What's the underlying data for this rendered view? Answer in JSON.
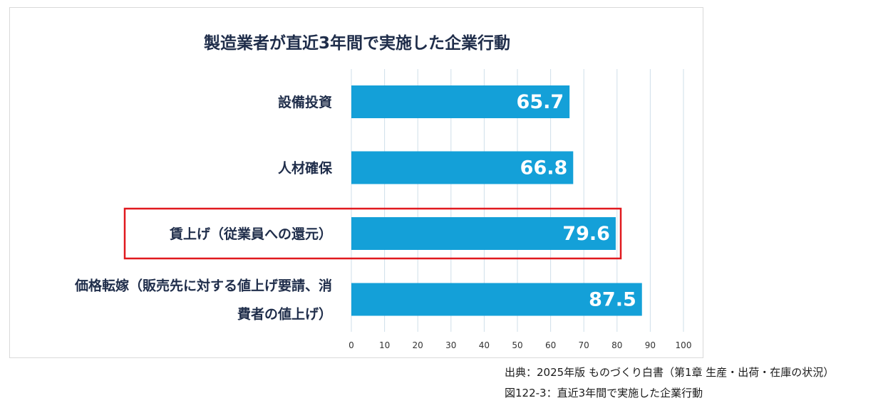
{
  "chart_data": {
    "type": "bar",
    "orientation": "horizontal",
    "title": "製造業者が直近3年間で実施した企業行動",
    "categories": [
      [
        "設備投資"
      ],
      [
        "人材確保"
      ],
      [
        "賃上げ（従業員への還元）"
      ],
      [
        "価格転嫁（販売先に対する値上げ要請、消",
        "費者の値上げ）"
      ]
    ],
    "values": [
      65.7,
      66.8,
      79.6,
      87.5
    ],
    "xlim": [
      0,
      100
    ],
    "xticks": [
      0,
      10,
      20,
      30,
      40,
      50,
      60,
      70,
      80,
      90,
      100
    ],
    "grid": true,
    "highlighted_category_index": 2,
    "colors": {
      "bar": "#14a0d8",
      "label": "#ffffff",
      "highlight": "#e0191e",
      "grid": "#cfdfea"
    }
  },
  "footer": {
    "source": "出典：2025年版 ものづくり白書（第1章 生産・出荷・在庫の状況）",
    "caption": "図122-3：直近3年間で実施した企業行動"
  }
}
